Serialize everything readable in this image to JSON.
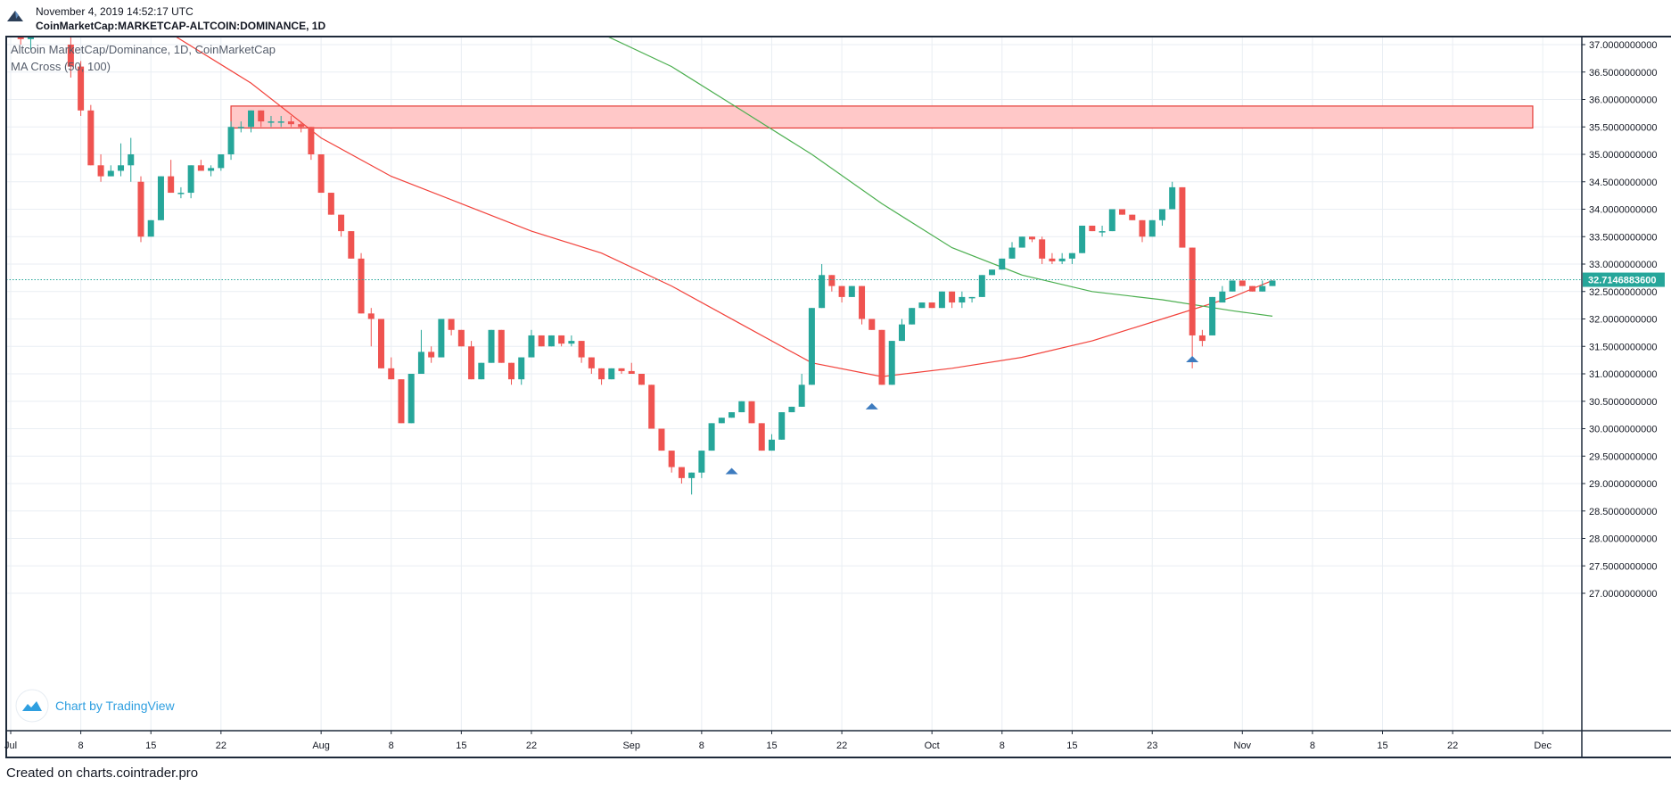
{
  "header": {
    "datetime": "November 4, 2019 14:52:17 UTC",
    "symbol": "CoinMarketCap:MARKETCAP-ALTCOIN:DOMINANCE, 1D"
  },
  "footer": {
    "credit": "Created on charts.cointrader.pro"
  },
  "watermark": {
    "text": "Chart by TradingView"
  },
  "colors": {
    "up": "#26a69a",
    "down": "#ef5350",
    "ma_fast": "#f2413a",
    "ma_slow": "#4caf50",
    "zone_fill": "#ffc8c8",
    "zone_stroke": "#e53935",
    "price_line": "#26a69a",
    "marker": "#3d7bbf"
  },
  "chart_data": {
    "type": "candlestick",
    "title": "Altcoin MarketCap/Dominance, 1D, CoinMarketCap",
    "indicator": "MA Cross (50, 100)",
    "ylim": [
      26.7,
      37.2
    ],
    "y_ticks": [
      "37.0000000000",
      "36.5000000000",
      "36.0000000000",
      "35.5000000000",
      "35.0000000000",
      "34.5000000000",
      "34.0000000000",
      "33.5000000000",
      "33.0000000000",
      "32.5000000000",
      "32.0000000000",
      "31.5000000000",
      "31.0000000000",
      "30.5000000000",
      "30.0000000000",
      "29.5000000000",
      "29.0000000000",
      "28.5000000000",
      "28.0000000000",
      "27.5000000000",
      "27.0000000000"
    ],
    "x_ticks": [
      {
        "label": "Jul",
        "date": "2019-07-01"
      },
      {
        "label": "8",
        "date": "2019-07-08"
      },
      {
        "label": "15",
        "date": "2019-07-15"
      },
      {
        "label": "22",
        "date": "2019-07-22"
      },
      {
        "label": "Aug",
        "date": "2019-08-01"
      },
      {
        "label": "8",
        "date": "2019-08-08"
      },
      {
        "label": "15",
        "date": "2019-08-15"
      },
      {
        "label": "22",
        "date": "2019-08-22"
      },
      {
        "label": "Sep",
        "date": "2019-09-01"
      },
      {
        "label": "8",
        "date": "2019-09-08"
      },
      {
        "label": "15",
        "date": "2019-09-15"
      },
      {
        "label": "22",
        "date": "2019-09-22"
      },
      {
        "label": "Oct",
        "date": "2019-10-01"
      },
      {
        "label": "8",
        "date": "2019-10-08"
      },
      {
        "label": "15",
        "date": "2019-10-15"
      },
      {
        "label": "23",
        "date": "2019-10-23"
      },
      {
        "label": "Nov",
        "date": "2019-11-01"
      },
      {
        "label": "8",
        "date": "2019-11-08"
      },
      {
        "label": "15",
        "date": "2019-11-15"
      },
      {
        "label": "22",
        "date": "2019-11-22"
      },
      {
        "label": "Dec",
        "date": "2019-12-01"
      }
    ],
    "last_price": 32.71468836,
    "last_price_label": "32.7146883600",
    "resistance_zone": {
      "from": "2019-07-23",
      "to": "2019-11-30",
      "low": 35.48,
      "high": 35.88
    },
    "markers": [
      {
        "date": "2019-09-11",
        "value": 29.22
      },
      {
        "date": "2019-09-25",
        "value": 30.4
      },
      {
        "date": "2019-10-27",
        "value": 31.26
      }
    ],
    "candles": [
      [
        "2019-07-02",
        37.4,
        37.6,
        37.0,
        37.1
      ],
      [
        "2019-07-03",
        37.1,
        37.4,
        36.9,
        37.3
      ],
      [
        "2019-07-07",
        37.0,
        37.2,
        36.4,
        36.6
      ],
      [
        "2019-07-08",
        36.6,
        36.7,
        35.7,
        35.8
      ],
      [
        "2019-07-09",
        35.8,
        35.9,
        34.8,
        34.8
      ],
      [
        "2019-07-10",
        34.8,
        35.0,
        34.5,
        34.6
      ],
      [
        "2019-07-11",
        34.6,
        34.8,
        34.6,
        34.7
      ],
      [
        "2019-07-12",
        34.7,
        35.2,
        34.6,
        34.8
      ],
      [
        "2019-07-13",
        34.8,
        35.3,
        34.5,
        35.0
      ],
      [
        "2019-07-14",
        34.5,
        34.6,
        33.4,
        33.5
      ],
      [
        "2019-07-15",
        33.5,
        33.8,
        33.5,
        33.8
      ],
      [
        "2019-07-16",
        33.8,
        34.6,
        33.8,
        34.6
      ],
      [
        "2019-07-17",
        34.6,
        34.9,
        34.3,
        34.3
      ],
      [
        "2019-07-18",
        34.3,
        34.4,
        34.2,
        34.3
      ],
      [
        "2019-07-19",
        34.3,
        34.8,
        34.2,
        34.8
      ],
      [
        "2019-07-20",
        34.8,
        34.9,
        34.7,
        34.7
      ],
      [
        "2019-07-21",
        34.7,
        34.8,
        34.6,
        34.75
      ],
      [
        "2019-07-22",
        34.75,
        35.0,
        34.7,
        35.0
      ],
      [
        "2019-07-23",
        35.0,
        35.6,
        34.9,
        35.5
      ],
      [
        "2019-07-24",
        35.5,
        35.6,
        35.4,
        35.5
      ],
      [
        "2019-07-25",
        35.5,
        35.8,
        35.4,
        35.8
      ],
      [
        "2019-07-26",
        35.8,
        35.8,
        35.5,
        35.6
      ],
      [
        "2019-07-27",
        35.6,
        35.7,
        35.5,
        35.6
      ],
      [
        "2019-07-28",
        35.6,
        35.7,
        35.5,
        35.6
      ],
      [
        "2019-07-29",
        35.6,
        35.7,
        35.5,
        35.55
      ],
      [
        "2019-07-30",
        35.55,
        35.6,
        35.4,
        35.5
      ],
      [
        "2019-07-31",
        35.5,
        35.5,
        34.9,
        35.0
      ],
      [
        "2019-08-01",
        35.0,
        35.0,
        34.3,
        34.3
      ],
      [
        "2019-08-02",
        34.3,
        34.3,
        33.9,
        33.9
      ],
      [
        "2019-08-03",
        33.9,
        33.9,
        33.5,
        33.6
      ],
      [
        "2019-08-04",
        33.6,
        33.6,
        33.1,
        33.1
      ],
      [
        "2019-08-05",
        33.1,
        33.2,
        32.1,
        32.1
      ],
      [
        "2019-08-06",
        32.1,
        32.2,
        31.5,
        32.0
      ],
      [
        "2019-08-07",
        32.0,
        32.0,
        31.1,
        31.1
      ],
      [
        "2019-08-08",
        31.1,
        31.3,
        30.9,
        30.9
      ],
      [
        "2019-08-09",
        30.9,
        30.9,
        30.1,
        30.1
      ],
      [
        "2019-08-10",
        30.1,
        31.0,
        30.1,
        31.0
      ],
      [
        "2019-08-11",
        31.0,
        31.8,
        31.0,
        31.4
      ],
      [
        "2019-08-12",
        31.4,
        31.5,
        31.2,
        31.3
      ],
      [
        "2019-08-13",
        31.3,
        32.0,
        31.3,
        32.0
      ],
      [
        "2019-08-14",
        32.0,
        32.0,
        31.7,
        31.8
      ],
      [
        "2019-08-15",
        31.8,
        31.8,
        31.5,
        31.5
      ],
      [
        "2019-08-16",
        31.5,
        31.6,
        30.9,
        30.9
      ],
      [
        "2019-08-17",
        30.9,
        31.2,
        30.9,
        31.2
      ],
      [
        "2019-08-18",
        31.2,
        31.8,
        31.2,
        31.8
      ],
      [
        "2019-08-19",
        31.8,
        31.8,
        31.2,
        31.2
      ],
      [
        "2019-08-20",
        31.2,
        31.2,
        30.8,
        30.9
      ],
      [
        "2019-08-21",
        30.9,
        31.3,
        30.8,
        31.3
      ],
      [
        "2019-08-22",
        31.3,
        31.8,
        31.3,
        31.7
      ],
      [
        "2019-08-23",
        31.7,
        31.7,
        31.5,
        31.5
      ],
      [
        "2019-08-24",
        31.5,
        31.7,
        31.5,
        31.7
      ],
      [
        "2019-08-25",
        31.7,
        31.7,
        31.5,
        31.55
      ],
      [
        "2019-08-26",
        31.55,
        31.7,
        31.5,
        31.6
      ],
      [
        "2019-08-27",
        31.6,
        31.6,
        31.2,
        31.3
      ],
      [
        "2019-08-28",
        31.3,
        31.3,
        31.0,
        31.1
      ],
      [
        "2019-08-29",
        31.1,
        31.1,
        30.8,
        30.9
      ],
      [
        "2019-08-30",
        30.9,
        31.1,
        30.9,
        31.1
      ],
      [
        "2019-08-31",
        31.1,
        31.1,
        31.0,
        31.05
      ],
      [
        "2019-09-01",
        31.05,
        31.2,
        31.0,
        31.0
      ],
      [
        "2019-09-02",
        31.0,
        31.0,
        30.8,
        30.8
      ],
      [
        "2019-09-03",
        30.8,
        30.8,
        30.0,
        30.0
      ],
      [
        "2019-09-04",
        30.0,
        30.0,
        29.6,
        29.6
      ],
      [
        "2019-09-05",
        29.6,
        29.6,
        29.2,
        29.3
      ],
      [
        "2019-09-06",
        29.3,
        29.3,
        29.0,
        29.1
      ],
      [
        "2019-09-07",
        29.1,
        29.2,
        28.8,
        29.2
      ],
      [
        "2019-09-08",
        29.2,
        29.6,
        29.1,
        29.6
      ],
      [
        "2019-09-09",
        29.6,
        30.1,
        29.6,
        30.1
      ],
      [
        "2019-09-10",
        30.1,
        30.2,
        30.1,
        30.2
      ],
      [
        "2019-09-11",
        30.2,
        30.3,
        30.2,
        30.3
      ],
      [
        "2019-09-12",
        30.3,
        30.5,
        30.3,
        30.5
      ],
      [
        "2019-09-13",
        30.5,
        30.5,
        30.1,
        30.1
      ],
      [
        "2019-09-14",
        30.1,
        30.1,
        29.6,
        29.6
      ],
      [
        "2019-09-15",
        29.6,
        29.9,
        29.6,
        29.8
      ],
      [
        "2019-09-16",
        29.8,
        30.3,
        29.8,
        30.3
      ],
      [
        "2019-09-17",
        30.3,
        30.4,
        30.3,
        30.4
      ],
      [
        "2019-09-18",
        30.4,
        31.0,
        30.4,
        30.8
      ],
      [
        "2019-09-19",
        30.8,
        32.2,
        30.8,
        32.2
      ],
      [
        "2019-09-20",
        32.2,
        33.0,
        32.2,
        32.8
      ],
      [
        "2019-09-21",
        32.8,
        32.8,
        32.5,
        32.6
      ],
      [
        "2019-09-22",
        32.6,
        32.6,
        32.3,
        32.4
      ],
      [
        "2019-09-23",
        32.4,
        32.6,
        32.4,
        32.6
      ],
      [
        "2019-09-24",
        32.6,
        32.6,
        31.9,
        32.0
      ],
      [
        "2019-09-25",
        32.0,
        32.0,
        31.8,
        31.8
      ],
      [
        "2019-09-26",
        31.8,
        31.8,
        30.8,
        30.8
      ],
      [
        "2019-09-27",
        30.8,
        31.6,
        30.8,
        31.6
      ],
      [
        "2019-09-28",
        31.6,
        32.0,
        31.6,
        31.9
      ],
      [
        "2019-09-29",
        31.9,
        32.2,
        31.9,
        32.2
      ],
      [
        "2019-09-30",
        32.2,
        32.3,
        32.2,
        32.3
      ],
      [
        "2019-10-01",
        32.3,
        32.3,
        32.2,
        32.2
      ],
      [
        "2019-10-02",
        32.2,
        32.5,
        32.2,
        32.5
      ],
      [
        "2019-10-03",
        32.5,
        32.5,
        32.2,
        32.3
      ],
      [
        "2019-10-04",
        32.3,
        32.5,
        32.2,
        32.4
      ],
      [
        "2019-10-05",
        32.4,
        32.4,
        32.3,
        32.4
      ],
      [
        "2019-10-06",
        32.4,
        32.8,
        32.4,
        32.8
      ],
      [
        "2019-10-07",
        32.8,
        32.9,
        32.8,
        32.9
      ],
      [
        "2019-10-08",
        32.9,
        33.1,
        32.9,
        33.1
      ],
      [
        "2019-10-09",
        33.1,
        33.4,
        33.1,
        33.3
      ],
      [
        "2019-10-10",
        33.3,
        33.5,
        33.3,
        33.5
      ],
      [
        "2019-10-11",
        33.5,
        33.5,
        33.4,
        33.45
      ],
      [
        "2019-10-12",
        33.45,
        33.5,
        33.0,
        33.1
      ],
      [
        "2019-10-13",
        33.1,
        33.2,
        33.0,
        33.05
      ],
      [
        "2019-10-14",
        33.05,
        33.2,
        33.0,
        33.1
      ],
      [
        "2019-10-15",
        33.1,
        33.2,
        33.0,
        33.2
      ],
      [
        "2019-10-16",
        33.2,
        33.7,
        33.2,
        33.7
      ],
      [
        "2019-10-17",
        33.7,
        33.7,
        33.6,
        33.6
      ],
      [
        "2019-10-18",
        33.6,
        33.7,
        33.5,
        33.6
      ],
      [
        "2019-10-19",
        33.6,
        34.0,
        33.6,
        34.0
      ],
      [
        "2019-10-20",
        34.0,
        34.0,
        33.9,
        33.9
      ],
      [
        "2019-10-21",
        33.9,
        33.9,
        33.8,
        33.8
      ],
      [
        "2019-10-22",
        33.8,
        33.8,
        33.4,
        33.5
      ],
      [
        "2019-10-23",
        33.5,
        33.8,
        33.5,
        33.8
      ],
      [
        "2019-10-24",
        33.8,
        34.0,
        33.7,
        34.0
      ],
      [
        "2019-10-25",
        34.0,
        34.5,
        34.0,
        34.4
      ],
      [
        "2019-10-26",
        34.4,
        34.4,
        33.3,
        33.3
      ],
      [
        "2019-10-27",
        33.3,
        33.3,
        31.1,
        31.7
      ],
      [
        "2019-10-28",
        31.7,
        31.8,
        31.5,
        31.6
      ],
      [
        "2019-10-29",
        31.7,
        32.4,
        31.7,
        32.4
      ],
      [
        "2019-10-30",
        32.3,
        32.6,
        32.3,
        32.5
      ],
      [
        "2019-10-31",
        32.5,
        32.7,
        32.5,
        32.7
      ],
      [
        "2019-11-01",
        32.7,
        32.7,
        32.6,
        32.6
      ],
      [
        "2019-11-02",
        32.6,
        32.6,
        32.5,
        32.5
      ],
      [
        "2019-11-03",
        32.5,
        32.7,
        32.5,
        32.6
      ],
      [
        "2019-11-04",
        32.6,
        32.7,
        32.6,
        32.7
      ]
    ],
    "ma_fast": [
      [
        "2019-07-17",
        37.2
      ],
      [
        "2019-07-25",
        36.3
      ],
      [
        "2019-08-01",
        35.3
      ],
      [
        "2019-08-08",
        34.6
      ],
      [
        "2019-08-15",
        34.1
      ],
      [
        "2019-08-22",
        33.6
      ],
      [
        "2019-08-29",
        33.2
      ],
      [
        "2019-09-05",
        32.6
      ],
      [
        "2019-09-12",
        31.9
      ],
      [
        "2019-09-19",
        31.2
      ],
      [
        "2019-09-26",
        30.95
      ],
      [
        "2019-10-03",
        31.1
      ],
      [
        "2019-10-10",
        31.3
      ],
      [
        "2019-10-17",
        31.6
      ],
      [
        "2019-10-24",
        32.0
      ],
      [
        "2019-10-31",
        32.4
      ],
      [
        "2019-11-04",
        32.7
      ]
    ],
    "ma_slow": [
      [
        "2019-08-29",
        37.2
      ],
      [
        "2019-09-05",
        36.6
      ],
      [
        "2019-09-12",
        35.8
      ],
      [
        "2019-09-19",
        35.0
      ],
      [
        "2019-09-26",
        34.1
      ],
      [
        "2019-10-03",
        33.3
      ],
      [
        "2019-10-10",
        32.8
      ],
      [
        "2019-10-17",
        32.5
      ],
      [
        "2019-10-24",
        32.35
      ],
      [
        "2019-10-31",
        32.15
      ],
      [
        "2019-11-04",
        32.05
      ]
    ]
  }
}
